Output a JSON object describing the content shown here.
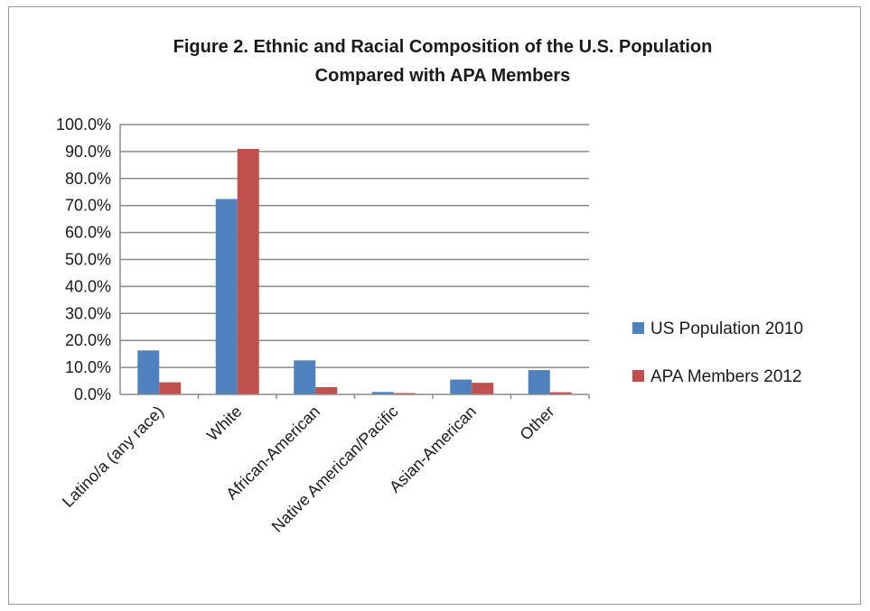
{
  "chart_data": {
    "type": "bar",
    "title_lines": [
      "Figure 2. Ethnic and Racial Composition of the U.S. Population",
      "Compared with APA Members"
    ],
    "categories": [
      "Latino/a (any race)",
      "White",
      "African-American",
      "Native American/Pacific",
      "Asian-American",
      "Other"
    ],
    "series": [
      {
        "name": "US Population 2010",
        "color": "#4f81bd",
        "values": [
          16.3,
          72.4,
          12.6,
          0.9,
          5.5,
          9.0
        ]
      },
      {
        "name": "APA Members 2012",
        "color": "#c0504d",
        "values": [
          4.5,
          91.0,
          2.7,
          0.5,
          4.3,
          0.8
        ]
      }
    ],
    "ylim": [
      0,
      100
    ],
    "yticks": [
      "0.0%",
      "10.0%",
      "20.0%",
      "30.0%",
      "40.0%",
      "50.0%",
      "60.0%",
      "70.0%",
      "80.0%",
      "90.0%",
      "100.0%"
    ],
    "xlabel": "",
    "ylabel": "",
    "grid": true,
    "legend_position": "right"
  }
}
